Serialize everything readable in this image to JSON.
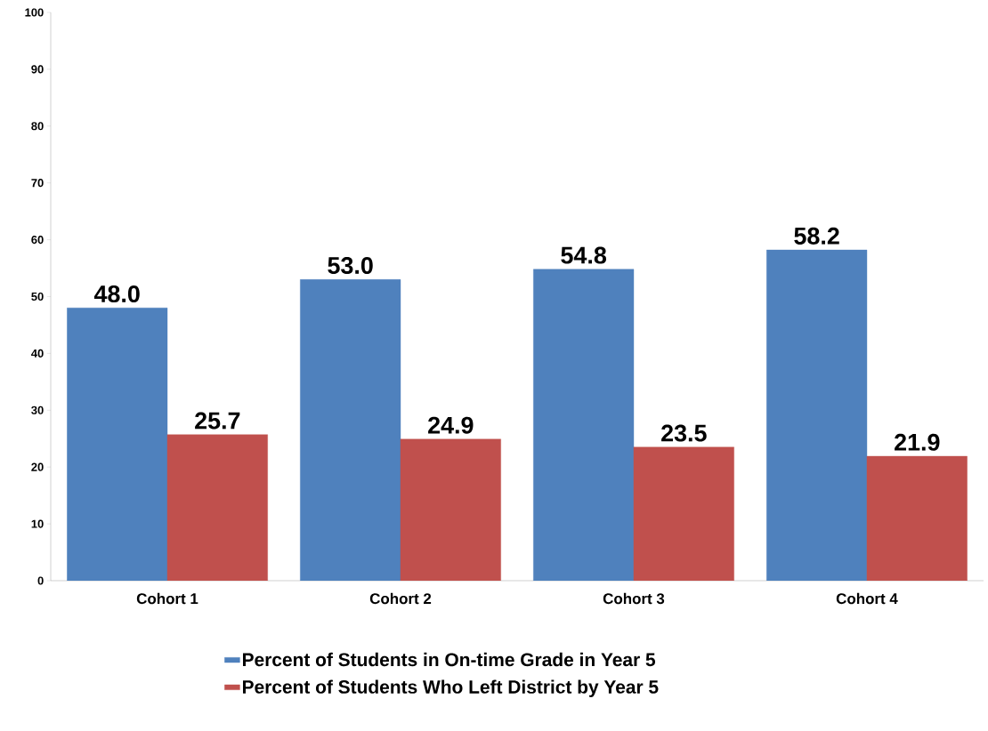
{
  "chart_data": {
    "type": "bar",
    "categories": [
      "Cohort 1",
      "Cohort 2",
      "Cohort 3",
      "Cohort 4"
    ],
    "series": [
      {
        "name": "Percent of Students in On-time Grade in Year 5",
        "color": "#4f81bd",
        "values": [
          48.0,
          53.0,
          54.8,
          58.2
        ],
        "value_labels": [
          "48.0",
          "53.0",
          "54.8",
          "58.2"
        ]
      },
      {
        "name": "Percent of Students Who Left District by Year 5",
        "color": "#c0504d",
        "values": [
          25.7,
          24.9,
          23.5,
          21.9
        ],
        "value_labels": [
          "25.7",
          "24.9",
          "23.5",
          "21.9"
        ]
      }
    ],
    "ylim": [
      0,
      100
    ],
    "yticks": [
      0,
      10,
      20,
      30,
      40,
      50,
      60,
      70,
      80,
      90,
      100
    ],
    "grid": false,
    "legend": "bottom"
  }
}
